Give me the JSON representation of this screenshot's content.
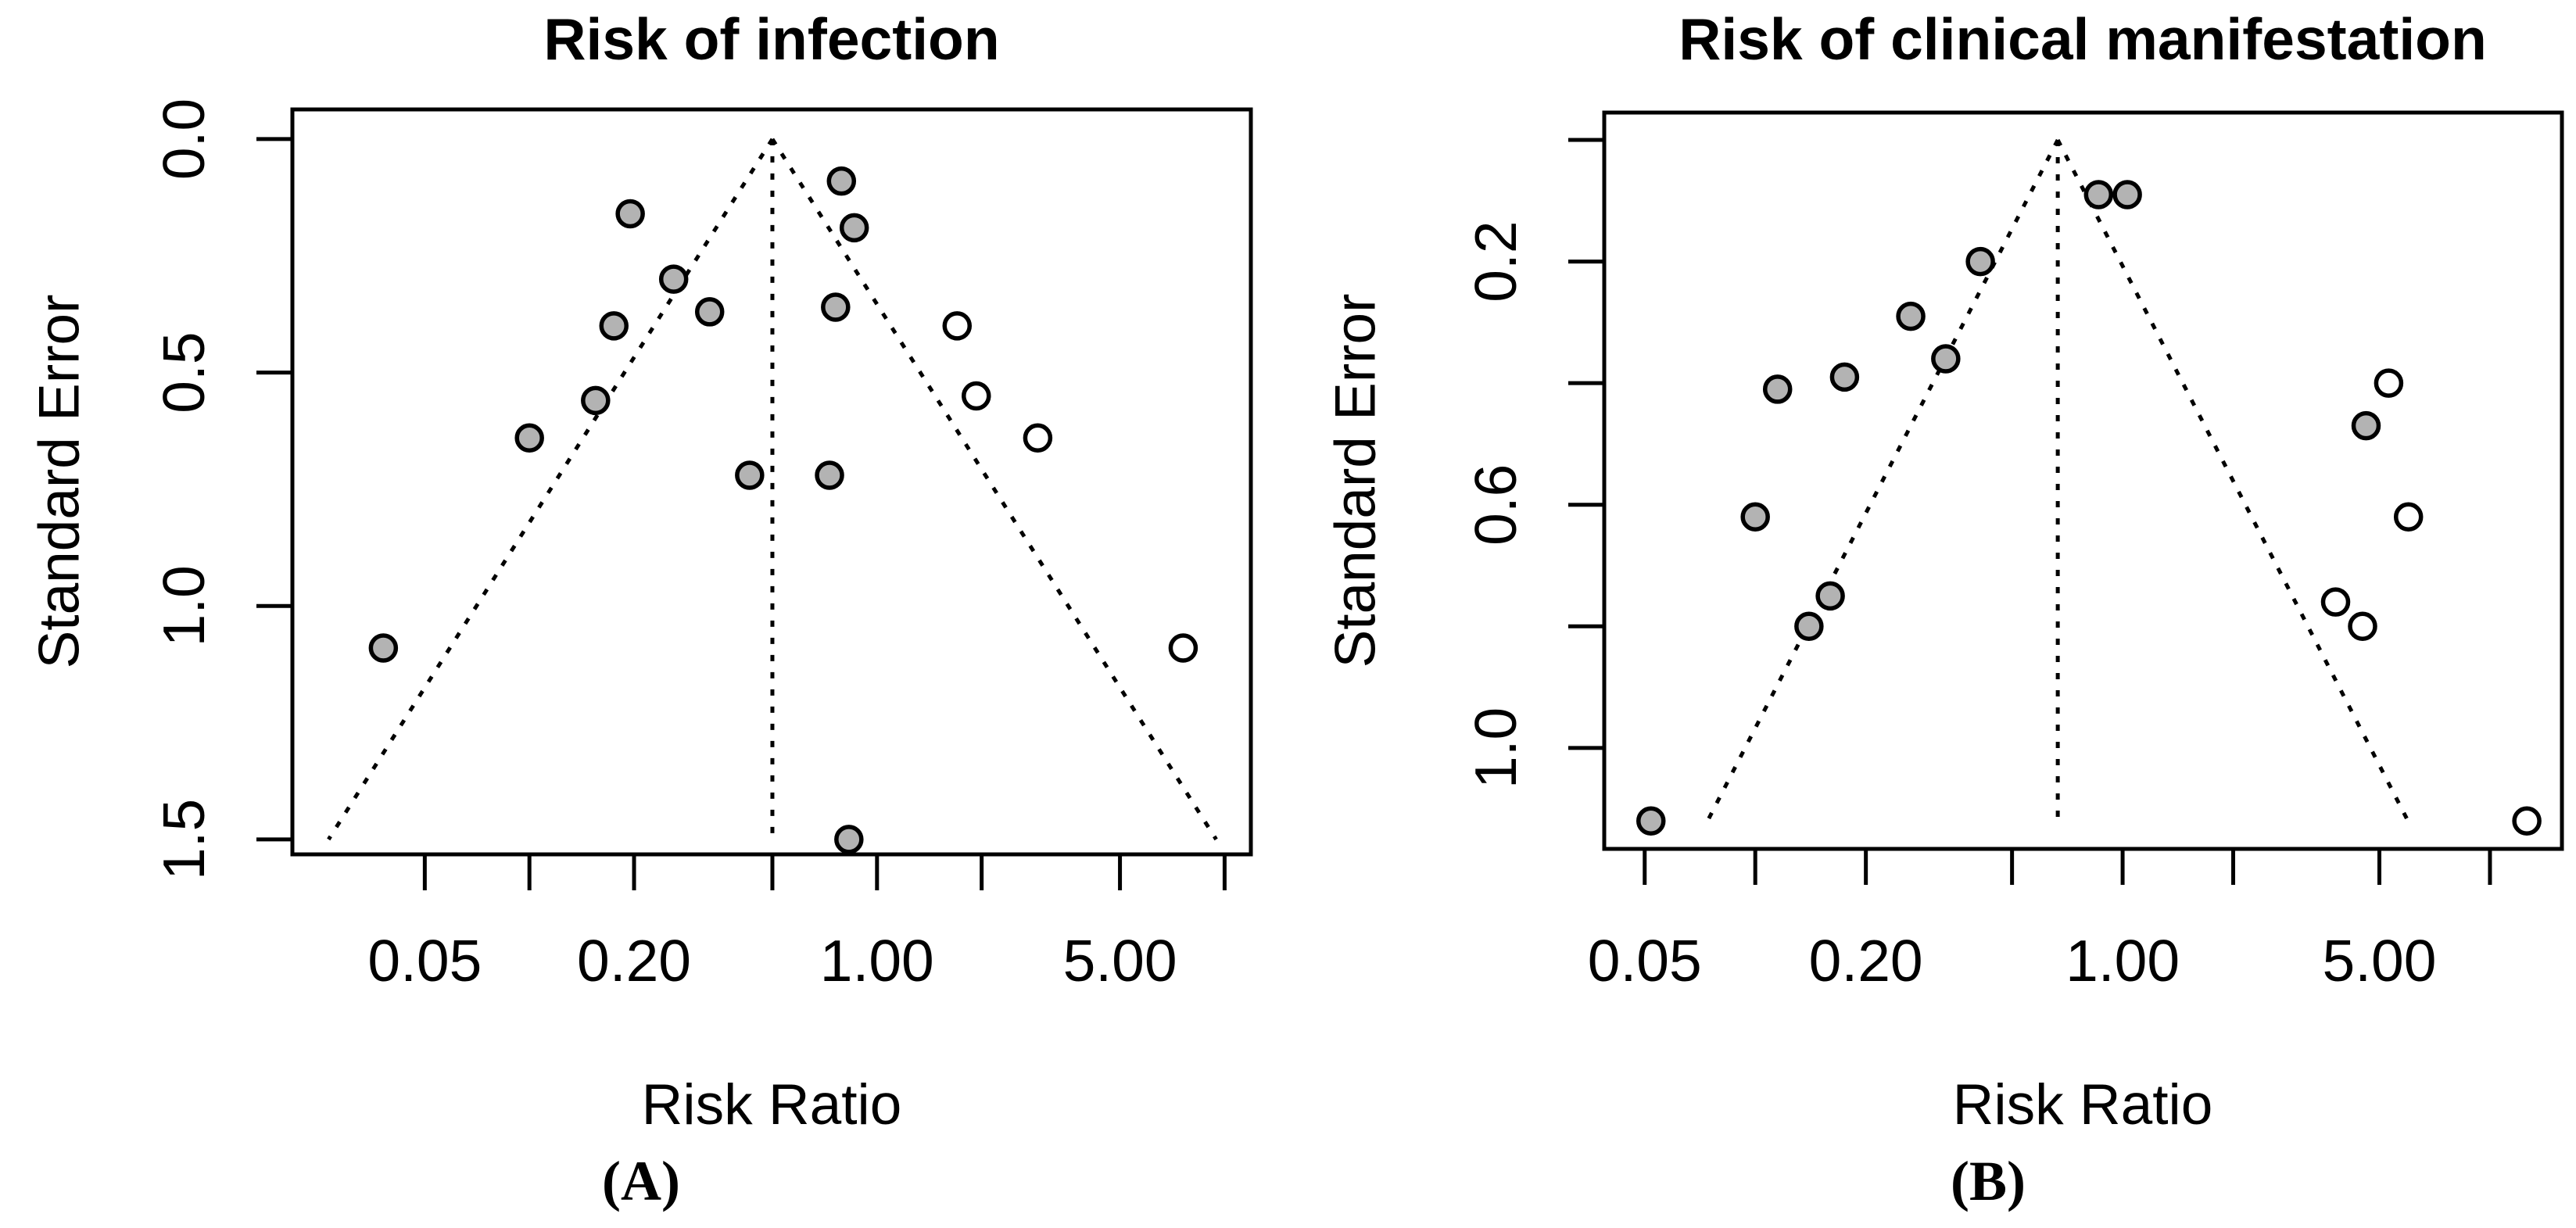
{
  "figure": {
    "colors": {
      "marker_stroke": "#000000",
      "marker_fill_shaded": "#b3b3b3",
      "marker_fill_open": "#ffffff",
      "line": "#000000",
      "background": "#ffffff"
    },
    "panels": [
      {
        "id": "a",
        "caption": "(A)",
        "chart_data": {
          "type": "scatter",
          "subtype": "funnel-plot",
          "title": "Risk of infection",
          "xlabel": "Risk Ratio",
          "ylabel": "Standard Error",
          "x_scale": "log",
          "y_inverted": true,
          "grid": false,
          "legend": null,
          "xlim": [
            0.0208,
            11.9
          ],
          "ylim_se": [
            -0.0635,
            1.532
          ],
          "x_ticks": [
            {
              "v": 0.05,
              "label": "0.05"
            },
            {
              "v": 0.1,
              "label": ""
            },
            {
              "v": 0.2,
              "label": "0.20"
            },
            {
              "v": 0.5,
              "label": ""
            },
            {
              "v": 1.0,
              "label": "1.00"
            },
            {
              "v": 2.0,
              "label": ""
            },
            {
              "v": 5.0,
              "label": "5.00"
            },
            {
              "v": 10.0,
              "label": ""
            }
          ],
          "y_ticks": [
            {
              "v": 0.0,
              "label": "0.0"
            },
            {
              "v": 0.5,
              "label": "0.5"
            },
            {
              "v": 1.0,
              "label": "1.0"
            },
            {
              "v": 1.5,
              "label": "1.5"
            }
          ],
          "funnel": {
            "center": 0.5,
            "z": 1.96,
            "se_end": 1.5,
            "style": "dotted"
          },
          "series": [
            {
              "name": "shaded-studies",
              "marker": "circle-filled",
              "fill": "#b3b3b3",
              "points": [
                [
                  0.195,
                  0.16
                ],
                [
                  0.79,
                  0.09
                ],
                [
                  0.86,
                  0.19
                ],
                [
                  0.26,
                  0.3
                ],
                [
                  0.33,
                  0.37
                ],
                [
                  0.175,
                  0.4
                ],
                [
                  0.76,
                  0.36
                ],
                [
                  0.155,
                  0.56
                ],
                [
                  0.1,
                  0.64
                ],
                [
                  0.43,
                  0.72
                ],
                [
                  0.73,
                  0.72
                ],
                [
                  0.038,
                  1.09
                ],
                [
                  0.83,
                  1.5
                ]
              ]
            },
            {
              "name": "open-studies",
              "marker": "circle-open",
              "fill": "#ffffff",
              "points": [
                [
                  1.7,
                  0.4
                ],
                [
                  1.93,
                  0.55
                ],
                [
                  2.9,
                  0.64
                ],
                [
                  7.6,
                  1.09
                ]
              ]
            }
          ]
        }
      },
      {
        "id": "b",
        "caption": "(B)",
        "chart_data": {
          "type": "scatter",
          "subtype": "funnel-plot",
          "title": "Risk of clinical manifestation",
          "xlabel": "Risk Ratio",
          "ylabel": "Standard Error",
          "x_scale": "log",
          "y_inverted": true,
          "grid": false,
          "legend": null,
          "xlim": [
            0.0388,
            15.7
          ],
          "ylim_se": [
            -0.045,
            1.166
          ],
          "x_ticks": [
            {
              "v": 0.05,
              "label": "0.05"
            },
            {
              "v": 0.1,
              "label": ""
            },
            {
              "v": 0.2,
              "label": "0.20"
            },
            {
              "v": 0.5,
              "label": ""
            },
            {
              "v": 1.0,
              "label": "1.00"
            },
            {
              "v": 2.0,
              "label": ""
            },
            {
              "v": 5.0,
              "label": "5.00"
            },
            {
              "v": 10.0,
              "label": ""
            }
          ],
          "y_ticks": [
            {
              "v": 0.0,
              "label": ""
            },
            {
              "v": 0.2,
              "label": "0.2"
            },
            {
              "v": 0.4,
              "label": ""
            },
            {
              "v": 0.6,
              "label": "0.6"
            },
            {
              "v": 0.8,
              "label": ""
            },
            {
              "v": 1.0,
              "label": "1.0"
            }
          ],
          "funnel": {
            "center": 0.666,
            "z": 1.96,
            "se_end": 1.12,
            "style": "dotted"
          },
          "series": [
            {
              "name": "shaded-studies",
              "marker": "circle-filled",
              "fill": "#b3b3b3",
              "points": [
                [
                  0.86,
                  0.09
                ],
                [
                  1.03,
                  0.09
                ],
                [
                  0.41,
                  0.2
                ],
                [
                  0.265,
                  0.29
                ],
                [
                  0.33,
                  0.36
                ],
                [
                  0.115,
                  0.41
                ],
                [
                  0.175,
                  0.39
                ],
                [
                  4.6,
                  0.47
                ],
                [
                  0.1,
                  0.62
                ],
                [
                  0.16,
                  0.75
                ],
                [
                  0.14,
                  0.8
                ],
                [
                  0.052,
                  1.12
                ]
              ]
            },
            {
              "name": "open-studies",
              "marker": "circle-open",
              "fill": "#ffffff",
              "points": [
                [
                  5.3,
                  0.4
                ],
                [
                  6.0,
                  0.62
                ],
                [
                  3.8,
                  0.76
                ],
                [
                  4.5,
                  0.8
                ],
                [
                  12.6,
                  1.12
                ]
              ]
            }
          ]
        }
      }
    ]
  }
}
